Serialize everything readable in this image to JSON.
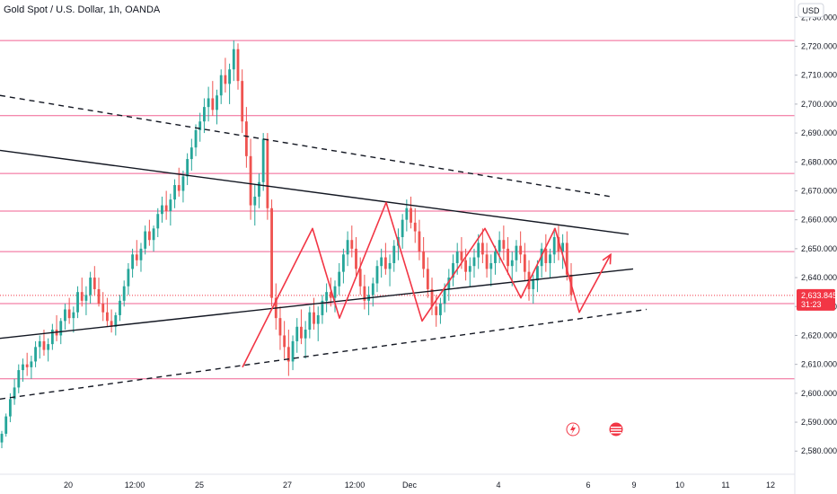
{
  "header": {
    "title": "Gold Spot / U.S. Dollar, 1h, OANDA",
    "currency": "USD"
  },
  "price_tag": {
    "price": "2,633.845",
    "countdown": "31:23"
  },
  "colors": {
    "up": "#26a69a",
    "down": "#ef5350",
    "level_line": "#f06292",
    "pattern": "#f23645",
    "trendline": "#131722",
    "tag": "#f23645"
  },
  "icons": [
    "lightning-icon",
    "flag-icon"
  ],
  "chart_data": {
    "type": "candlestick",
    "symbol": "Gold Spot / U.S. Dollar",
    "interval": "1h",
    "source": "OANDA",
    "ylim": [
      2572,
      2736
    ],
    "y_ticks": [
      "2,580.000",
      "2,590.000",
      "2,600.000",
      "2,610.000",
      "2,620.000",
      "2,630.000",
      "2,640.000",
      "2,650.000",
      "2,660.000",
      "2,670.000",
      "2,680.000",
      "2,690.000",
      "2,700.000",
      "2,710.000",
      "2,720.000",
      "2,730.000"
    ],
    "x_ticks": [
      "20",
      "12:00",
      "25",
      "27",
      "12:00",
      "Dec",
      "4",
      "6",
      "9",
      "10",
      "11",
      "12"
    ],
    "last_price": 2633.845,
    "horizontal_levels": [
      2722,
      2696,
      2676,
      2663,
      2649,
      2631,
      2605
    ],
    "trendlines": [
      {
        "style": "solid",
        "points": [
          [
            0,
            2684
          ],
          [
            700,
            2655
          ]
        ]
      },
      {
        "style": "solid",
        "points": [
          [
            0,
            2619
          ],
          [
            705,
            2643
          ]
        ]
      },
      {
        "style": "dashed",
        "points": [
          [
            0,
            2703
          ],
          [
            680,
            2668
          ]
        ]
      },
      {
        "style": "dashed",
        "points": [
          [
            0,
            2598
          ],
          [
            720,
            2629
          ]
        ]
      }
    ],
    "zigzag_pattern": [
      [
        270,
        2609
      ],
      [
        348,
        2657
      ],
      [
        378,
        2626
      ],
      [
        430,
        2666
      ],
      [
        470,
        2625
      ],
      [
        540,
        2657
      ],
      [
        580,
        2633
      ],
      [
        618,
        2657
      ],
      [
        645,
        2628
      ],
      [
        680,
        2648
      ]
    ],
    "candles": [
      [
        2583,
        2587,
        2581,
        2586
      ],
      [
        2586,
        2593,
        2585,
        2592
      ],
      [
        2592,
        2600,
        2590,
        2598
      ],
      [
        2598,
        2605,
        2596,
        2602
      ],
      [
        2602,
        2610,
        2600,
        2608
      ],
      [
        2608,
        2612,
        2604,
        2610
      ],
      [
        2610,
        2614,
        2606,
        2609
      ],
      [
        2609,
        2613,
        2605,
        2611
      ],
      [
        2611,
        2618,
        2609,
        2616
      ],
      [
        2616,
        2620,
        2612,
        2618
      ],
      [
        2618,
        2622,
        2613,
        2615
      ],
      [
        2615,
        2619,
        2611,
        2617
      ],
      [
        2617,
        2624,
        2615,
        2622
      ],
      [
        2622,
        2627,
        2618,
        2620
      ],
      [
        2620,
        2626,
        2617,
        2625
      ],
      [
        2625,
        2631,
        2622,
        2629
      ],
      [
        2629,
        2633,
        2624,
        2626
      ],
      [
        2626,
        2630,
        2621,
        2628
      ],
      [
        2628,
        2637,
        2626,
        2635
      ],
      [
        2635,
        2640,
        2630,
        2632
      ],
      [
        2632,
        2637,
        2627,
        2634
      ],
      [
        2634,
        2642,
        2631,
        2640
      ],
      [
        2640,
        2644,
        2634,
        2636
      ],
      [
        2636,
        2640,
        2630,
        2631
      ],
      [
        2631,
        2635,
        2625,
        2628
      ],
      [
        2628,
        2633,
        2623,
        2625
      ],
      [
        2625,
        2629,
        2621,
        2623
      ],
      [
        2623,
        2628,
        2620,
        2627
      ],
      [
        2627,
        2634,
        2625,
        2632
      ],
      [
        2632,
        2639,
        2630,
        2637
      ],
      [
        2637,
        2645,
        2634,
        2643
      ],
      [
        2643,
        2650,
        2640,
        2648
      ],
      [
        2648,
        2653,
        2644,
        2646
      ],
      [
        2646,
        2652,
        2642,
        2650
      ],
      [
        2650,
        2658,
        2648,
        2656
      ],
      [
        2656,
        2660,
        2651,
        2653
      ],
      [
        2653,
        2658,
        2649,
        2657
      ],
      [
        2657,
        2664,
        2654,
        2662
      ],
      [
        2662,
        2668,
        2659,
        2665
      ],
      [
        2665,
        2670,
        2660,
        2663
      ],
      [
        2663,
        2669,
        2658,
        2667
      ],
      [
        2667,
        2674,
        2664,
        2672
      ],
      [
        2672,
        2678,
        2668,
        2670
      ],
      [
        2670,
        2677,
        2666,
        2675
      ],
      [
        2675,
        2683,
        2672,
        2681
      ],
      [
        2681,
        2688,
        2677,
        2685
      ],
      [
        2685,
        2693,
        2682,
        2691
      ],
      [
        2691,
        2697,
        2687,
        2694
      ],
      [
        2694,
        2702,
        2690,
        2699
      ],
      [
        2699,
        2706,
        2694,
        2702
      ],
      [
        2702,
        2708,
        2696,
        2698
      ],
      [
        2698,
        2705,
        2693,
        2703
      ],
      [
        2703,
        2712,
        2700,
        2710
      ],
      [
        2710,
        2716,
        2704,
        2707
      ],
      [
        2707,
        2714,
        2700,
        2712
      ],
      [
        2712,
        2722,
        2708,
        2719
      ],
      [
        2719,
        2721,
        2705,
        2708
      ],
      [
        2708,
        2712,
        2690,
        2694
      ],
      [
        2694,
        2699,
        2678,
        2682
      ],
      [
        2682,
        2688,
        2660,
        2665
      ],
      [
        2665,
        2672,
        2658,
        2668
      ],
      [
        2668,
        2676,
        2664,
        2673
      ],
      [
        2673,
        2690,
        2670,
        2688
      ],
      [
        2688,
        2690,
        2660,
        2664
      ],
      [
        2664,
        2667,
        2630,
        2633
      ],
      [
        2633,
        2638,
        2622,
        2626
      ],
      [
        2626,
        2630,
        2615,
        2620
      ],
      [
        2620,
        2625,
        2612,
        2616
      ],
      [
        2616,
        2622,
        2606,
        2611
      ],
      [
        2611,
        2620,
        2608,
        2618
      ],
      [
        2618,
        2626,
        2614,
        2623
      ],
      [
        2623,
        2629,
        2617,
        2619
      ],
      [
        2619,
        2625,
        2612,
        2622
      ],
      [
        2622,
        2630,
        2619,
        2628
      ],
      [
        2628,
        2633,
        2622,
        2624
      ],
      [
        2624,
        2630,
        2618,
        2627
      ],
      [
        2627,
        2634,
        2624,
        2632
      ],
      [
        2632,
        2638,
        2628,
        2635
      ],
      [
        2635,
        2640,
        2630,
        2633
      ],
      [
        2633,
        2639,
        2628,
        2637
      ],
      [
        2637,
        2645,
        2634,
        2642
      ],
      [
        2642,
        2650,
        2638,
        2648
      ],
      [
        2648,
        2656,
        2644,
        2653
      ],
      [
        2653,
        2658,
        2647,
        2650
      ],
      [
        2650,
        2654,
        2640,
        2643
      ],
      [
        2643,
        2647,
        2634,
        2637
      ],
      [
        2637,
        2641,
        2629,
        2632
      ],
      [
        2632,
        2637,
        2627,
        2634
      ],
      [
        2634,
        2640,
        2630,
        2638
      ],
      [
        2638,
        2646,
        2635,
        2644
      ],
      [
        2644,
        2650,
        2640,
        2647
      ],
      [
        2647,
        2652,
        2641,
        2643
      ],
      [
        2643,
        2648,
        2637,
        2645
      ],
      [
        2645,
        2653,
        2642,
        2651
      ],
      [
        2651,
        2657,
        2646,
        2654
      ],
      [
        2654,
        2662,
        2650,
        2660
      ],
      [
        2660,
        2667,
        2656,
        2664
      ],
      [
        2664,
        2668,
        2657,
        2659
      ],
      [
        2659,
        2664,
        2652,
        2656
      ],
      [
        2656,
        2660,
        2646,
        2649
      ],
      [
        2649,
        2654,
        2640,
        2643
      ],
      [
        2643,
        2647,
        2633,
        2636
      ],
      [
        2636,
        2640,
        2627,
        2630
      ],
      [
        2630,
        2634,
        2623,
        2627
      ],
      [
        2627,
        2633,
        2624,
        2631
      ],
      [
        2631,
        2638,
        2628,
        2636
      ],
      [
        2636,
        2643,
        2632,
        2640
      ],
      [
        2640,
        2648,
        2637,
        2645
      ],
      [
        2645,
        2652,
        2641,
        2649
      ],
      [
        2649,
        2654,
        2643,
        2646
      ],
      [
        2646,
        2650,
        2639,
        2642
      ],
      [
        2642,
        2647,
        2637,
        2644
      ],
      [
        2644,
        2650,
        2640,
        2647
      ],
      [
        2647,
        2655,
        2643,
        2652
      ],
      [
        2652,
        2657,
        2645,
        2648
      ],
      [
        2648,
        2652,
        2640,
        2643
      ],
      [
        2643,
        2648,
        2637,
        2645
      ],
      [
        2645,
        2651,
        2641,
        2649
      ],
      [
        2649,
        2656,
        2645,
        2653
      ],
      [
        2653,
        2658,
        2646,
        2650
      ],
      [
        2650,
        2654,
        2641,
        2644
      ],
      [
        2644,
        2649,
        2637,
        2646
      ],
      [
        2646,
        2653,
        2642,
        2651
      ],
      [
        2651,
        2656,
        2645,
        2648
      ],
      [
        2648,
        2652,
        2639,
        2642
      ],
      [
        2642,
        2646,
        2632,
        2636
      ],
      [
        2636,
        2641,
        2631,
        2639
      ],
      [
        2639,
        2646,
        2635,
        2644
      ],
      [
        2644,
        2652,
        2640,
        2650
      ],
      [
        2650,
        2655,
        2642,
        2645
      ],
      [
        2645,
        2650,
        2640,
        2648
      ],
      [
        2648,
        2657,
        2645,
        2654
      ],
      [
        2654,
        2658,
        2646,
        2649
      ],
      [
        2649,
        2655,
        2643,
        2652
      ],
      [
        2652,
        2656,
        2639,
        2641
      ],
      [
        2641,
        2645,
        2632,
        2634
      ]
    ]
  }
}
